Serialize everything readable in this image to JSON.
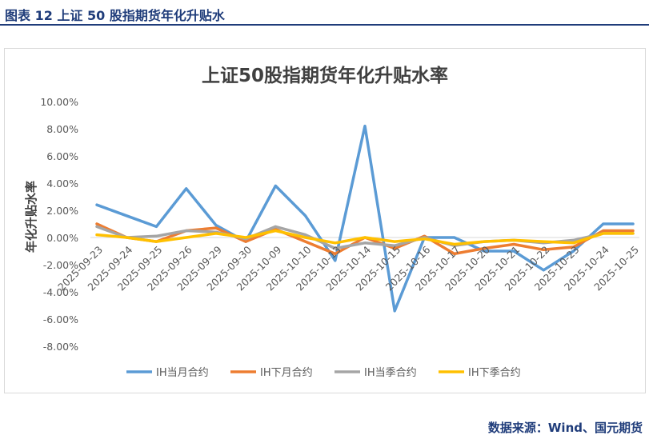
{
  "figure": {
    "caption": "图表 12  上证 50 股指期货年化升贴水",
    "source": "数据来源：Wind、国元期货"
  },
  "chart_data": {
    "type": "line",
    "title": "上证50股指期货年化升贴水率",
    "ylabel": "年化升贴水率",
    "xlabel": "",
    "ylim": [
      -0.08,
      0.1
    ],
    "yticks": [
      "10.00%",
      "8.00%",
      "6.00%",
      "4.00%",
      "2.00%",
      "0.00%",
      "-2.00%",
      "-4.00%",
      "-6.00%",
      "-8.00%"
    ],
    "ytick_values": [
      0.1,
      0.08,
      0.06,
      0.04,
      0.02,
      0.0,
      -0.02,
      -0.04,
      -0.06,
      -0.08
    ],
    "grid": false,
    "legend": "bottom",
    "categories": [
      "2025-09-23",
      "2025-09-24",
      "2025-09-25",
      "2025-09-26",
      "2025-09-29",
      "2025-09-30",
      "2025-10-09",
      "2025-10-10",
      "2025-10-13",
      "2025-10-14",
      "2025-10-15",
      "2025-10-16",
      "2025-10-17",
      "2025-10-20",
      "2025-10-21",
      "2025-10-22",
      "2025-10-23",
      "2025-10-24",
      "2025-10-25"
    ],
    "tick_labels": [
      "2025-09-23",
      "2025-09-24",
      "2025-09-25",
      "2025-09-26",
      "2025-09-29",
      "2025-09-30",
      "2025-10-09",
      "2025-10-10",
      "2025-10-13",
      "2025-10-14",
      "2025-10-15",
      "2025-10-16",
      "2025-10-17",
      "2025-10-20",
      "2025-10-21",
      "2025-10-22",
      "2025-10-23",
      "2025-10-24",
      "2025-10-25"
    ],
    "series": [
      {
        "name": "IH当月合约",
        "color": "#5b9bd5",
        "values": [
          0.024,
          0.016,
          0.008,
          0.036,
          0.009,
          -0.003,
          0.038,
          0.016,
          -0.017,
          0.082,
          -0.054,
          0.0,
          0.0,
          -0.01,
          -0.01,
          -0.024,
          -0.01,
          0.01,
          0.01
        ]
      },
      {
        "name": "IH下月合约",
        "color": "#ed7d31",
        "values": [
          0.01,
          0.0,
          -0.003,
          0.005,
          0.007,
          -0.003,
          0.006,
          -0.003,
          -0.012,
          0.0,
          -0.008,
          0.001,
          -0.012,
          -0.008,
          -0.005,
          -0.009,
          -0.007,
          0.005,
          0.005
        ]
      },
      {
        "name": "IH当季合约",
        "color": "#a5a5a5",
        "values": [
          0.008,
          0.0,
          0.001,
          0.005,
          0.004,
          -0.001,
          0.008,
          0.002,
          -0.008,
          -0.004,
          -0.006,
          0.0,
          -0.006,
          -0.003,
          -0.002,
          -0.004,
          -0.002,
          0.003,
          0.003
        ]
      },
      {
        "name": "IH下季合约",
        "color": "#ffc000",
        "values": [
          0.002,
          0.0,
          -0.003,
          0.0,
          0.003,
          0.0,
          0.005,
          0.0,
          -0.004,
          0.0,
          -0.003,
          -0.001,
          -0.005,
          -0.003,
          -0.002,
          -0.003,
          -0.004,
          0.003,
          0.003
        ]
      }
    ]
  }
}
